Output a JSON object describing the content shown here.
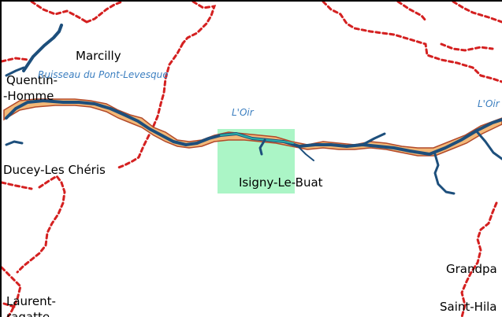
{
  "map": {
    "places": {
      "marcilly": "Marcilly",
      "quentin": "Quentin-",
      "homme": "-Homme",
      "ducey": "Ducey-Les Chéris",
      "isigny": "Isigny-Le-Buat",
      "grandparigny": "Grandpa",
      "saint_hilaire": "Saint-Hila",
      "laurent": "Laurent-",
      "laurent2": "ragatte"
    },
    "water": {
      "ruisseau": "Ruisseau du Pont-Levesque",
      "oir_center": "L'Oir",
      "oir_right": "L'Oir"
    },
    "colors": {
      "river": "#1d4f7c",
      "river_inner": "#2ab0a8",
      "floodplain": "#f2b878",
      "floodplain_edge": "#b24a2a",
      "boundary": "#d42020",
      "highlight": "#7ef0a8"
    }
  }
}
